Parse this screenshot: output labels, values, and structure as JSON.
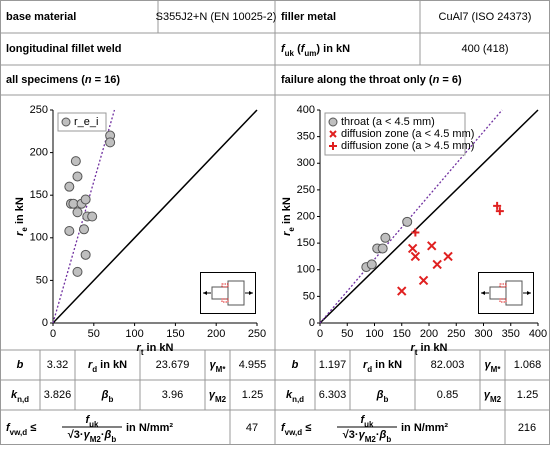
{
  "header": {
    "base_label": "base material",
    "base_value": "S355J2+N (EN 10025-2)",
    "filler_label": "filler metal",
    "filler_value": "CuAl7 (ISO 24373)",
    "weld": "longitudinal fillet weld",
    "fuk_label": [
      {
        "i": "f"
      },
      {
        "sub": "uk"
      },
      {
        "t": " ("
      },
      {
        "i": "f"
      },
      {
        "sub": "um"
      },
      {
        "t": ") in kN"
      }
    ],
    "fuk_value": "400 (418)"
  },
  "panels": [
    {
      "title": [
        {
          "t": "all specimens ("
        },
        {
          "i": "n"
        },
        {
          "t": " = 16)"
        }
      ],
      "rows": [
        [
          [
            {
              "i": "b"
            }
          ],
          3.32,
          [
            {
              "i": "r"
            },
            {
              "sub": "d"
            },
            {
              "t": " in kN"
            }
          ],
          23.679,
          [
            {
              "i": "γ"
            },
            {
              "sub": "M*"
            }
          ],
          4.955
        ],
        [
          [
            {
              "i": "k"
            },
            {
              "sub": "n,d"
            }
          ],
          3.826,
          [
            {
              "i": "β"
            },
            {
              "sub": "b"
            }
          ],
          3.96,
          [
            {
              "i": "γ"
            },
            {
              "sub": "M2"
            }
          ],
          1.25
        ]
      ],
      "formula": {
        "lhs": [
          {
            "i": "f"
          },
          {
            "sub": "vw,d"
          },
          {
            "t": " ≤"
          }
        ],
        "num": [
          {
            "i": "f"
          },
          {
            "sub": "uk"
          }
        ],
        "den": [
          {
            "t": "√3·"
          },
          {
            "i": "γ"
          },
          {
            "sub": "M2"
          },
          {
            "t": "·"
          },
          {
            "i": "β"
          },
          {
            "sub": "b"
          }
        ],
        "unit": [
          {
            "t": "in N/mm²"
          }
        ]
      },
      "formula_value": 47
    },
    {
      "title": [
        {
          "t": "failure along the throat only ("
        },
        {
          "i": "n"
        },
        {
          "t": " = 6)"
        }
      ],
      "rows": [
        [
          [
            {
              "i": "b"
            }
          ],
          1.197,
          [
            {
              "i": "r"
            },
            {
              "sub": "d"
            },
            {
              "t": " in kN"
            }
          ],
          82.003,
          [
            {
              "i": "γ"
            },
            {
              "sub": "M*"
            }
          ],
          1.068
        ],
        [
          [
            {
              "i": "k"
            },
            {
              "sub": "n,d"
            }
          ],
          6.303,
          [
            {
              "i": "β"
            },
            {
              "sub": "b"
            }
          ],
          0.85,
          [
            {
              "i": "γ"
            },
            {
              "sub": "M2"
            }
          ],
          1.25
        ]
      ],
      "formula": {
        "lhs": [
          {
            "i": "f"
          },
          {
            "sub": "vw,d"
          },
          {
            "t": " ≤"
          }
        ],
        "num": [
          {
            "i": "f"
          },
          {
            "sub": "uk"
          }
        ],
        "den": [
          {
            "t": "√3·"
          },
          {
            "i": "γ"
          },
          {
            "sub": "M2"
          },
          {
            "t": "·"
          },
          {
            "i": "β"
          },
          {
            "sub": "b"
          }
        ],
        "unit": [
          {
            "t": "in N/mm²"
          }
        ]
      },
      "formula_value": 216
    }
  ],
  "chart_data": [
    {
      "type": "scatter",
      "xlabel": [
        {
          "i": "r"
        },
        {
          "sub": "t"
        },
        {
          "t": " in kN"
        }
      ],
      "ylabel": [
        {
          "i": "r"
        },
        {
          "sub": "e"
        },
        {
          "t": " in kN"
        }
      ],
      "xlim": [
        0,
        250
      ],
      "ylim": [
        0,
        250
      ],
      "xticks": [
        0,
        50,
        100,
        150,
        200,
        250
      ],
      "yticks": [
        0,
        50,
        100,
        150,
        200,
        250
      ],
      "legend": "top-left",
      "series": [
        {
          "name": "r_e_i",
          "color": "#bfbfbf",
          "marker": "circle",
          "x": [
            70,
            70,
            28,
            30,
            20,
            22,
            25,
            35,
            40,
            30,
            42,
            48,
            20,
            38,
            30,
            40
          ],
          "values": [
            220,
            212,
            190,
            172,
            160,
            140,
            140,
            140,
            145,
            130,
            125,
            125,
            108,
            110,
            60,
            80
          ]
        }
      ]
    },
    {
      "type": "scatter",
      "xlabel": [
        {
          "i": "r"
        },
        {
          "sub": "t"
        },
        {
          "t": " in kN"
        }
      ],
      "ylabel": [
        {
          "i": "r"
        },
        {
          "sub": "e"
        },
        {
          "t": " in kN"
        }
      ],
      "xlim": [
        0,
        400
      ],
      "ylim": [
        0,
        400
      ],
      "xticks": [
        0,
        50,
        100,
        150,
        200,
        250,
        300,
        350,
        400
      ],
      "yticks": [
        0,
        50,
        100,
        150,
        200,
        250,
        300,
        350,
        400
      ],
      "legend": "top-left",
      "series": [
        {
          "name": "throat (a < 4.5 mm)",
          "color": "#bfbfbf",
          "marker": "circle",
          "x": [
            85,
            95,
            105,
            115,
            120,
            160
          ],
          "values": [
            105,
            110,
            140,
            140,
            160,
            190
          ]
        },
        {
          "name": "diffusion zone  (a < 4.5 mm)",
          "color": "#e02020",
          "marker": "x",
          "x": [
            150,
            170,
            175,
            190,
            205,
            215,
            235
          ],
          "values": [
            60,
            140,
            125,
            80,
            145,
            110,
            125
          ]
        },
        {
          "name": "diffusion zone  (a > 4.5 mm)",
          "color": "#e02020",
          "marker": "plus",
          "x": [
            175,
            325,
            330
          ],
          "values": [
            170,
            220,
            210
          ]
        }
      ]
    }
  ]
}
